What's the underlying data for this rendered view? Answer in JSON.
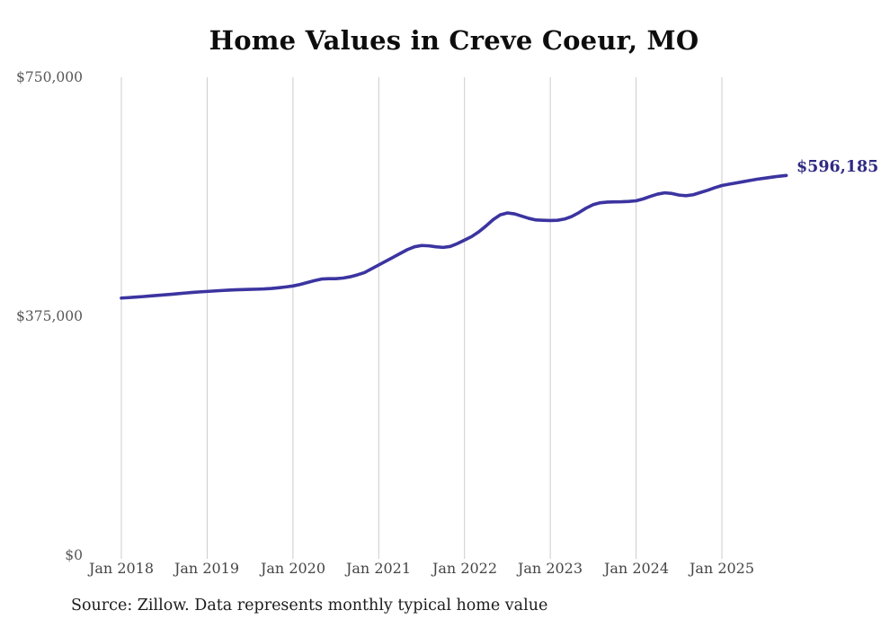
{
  "source": "Source: Zillow. Data represents monthly typical home value",
  "colors": {
    "line": "#3b34a0",
    "end_label": "#2f2a82",
    "gridline": "#cccccc",
    "y_tick_text": "#575757",
    "x_tick_text": "#454545",
    "title_text": "#0d0d0d",
    "background": "#ffffff"
  },
  "chart_data": {
    "type": "line",
    "title": "Home Values in Creve Coeur, MO",
    "x_start": "2018-01",
    "x_end": "2025-10",
    "interval": "monthly",
    "x_ticks": [
      "Jan 2018",
      "Jan 2019",
      "Jan 2020",
      "Jan 2021",
      "Jan 2022",
      "Jan 2023",
      "Jan 2024",
      "Jan 2025"
    ],
    "y_ticks": [
      "$750,000",
      "$375,000",
      "$0"
    ],
    "ylim": [
      0,
      750000
    ],
    "grid": "vertical-only",
    "end_label": "$596,185",
    "end_value": 596185,
    "series": [
      {
        "name": "Typical home value",
        "values": [
          404200,
          404900,
          405700,
          406500,
          407400,
          408300,
          409200,
          410100,
          411100,
          412100,
          413100,
          413900,
          414600,
          415300,
          416000,
          416600,
          417100,
          417500,
          417800,
          418100,
          418500,
          419200,
          420300,
          421600,
          423100,
          425500,
          428500,
          431500,
          434000,
          434500,
          434500,
          435500,
          437500,
          440500,
          444000,
          450000,
          456000,
          462000,
          468000,
          474000,
          480000,
          484500,
          486500,
          486000,
          484500,
          483500,
          485000,
          489500,
          495000,
          500500,
          508000,
          517000,
          527000,
          534500,
          537500,
          536000,
          532500,
          529000,
          526500,
          526000,
          525700,
          526000,
          528000,
          532000,
          538000,
          545000,
          550500,
          553500,
          554500,
          554800,
          555000,
          555500,
          556500,
          559500,
          563500,
          567000,
          569000,
          568000,
          565500,
          564500,
          566000,
          569500,
          573000,
          577000,
          580400,
          582500,
          584500,
          586500,
          588500,
          590500,
          592000,
          593500,
          595000,
          596185
        ]
      }
    ]
  }
}
